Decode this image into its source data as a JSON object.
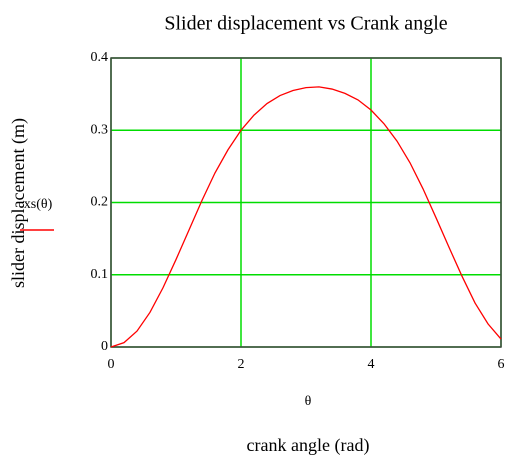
{
  "chart_data": {
    "type": "line",
    "title": "Slider displacement vs Crank angle",
    "x_label": "crank angle (rad)",
    "x_variable": "θ",
    "y_label": "slider displacement (m)",
    "x": [
      0,
      0.2,
      0.4,
      0.6,
      0.8,
      1.0,
      1.2,
      1.4,
      1.6,
      1.8,
      2.0,
      2.2,
      2.4,
      2.6,
      2.8,
      3.0,
      3.2,
      3.4,
      3.6,
      3.8,
      4.0,
      4.2,
      4.4,
      4.6,
      4.8,
      5.0,
      5.2,
      5.4,
      5.6,
      5.8,
      6.0
    ],
    "series": [
      {
        "name": "xs(θ)",
        "color": "#ff0000",
        "values": [
          0,
          0.006,
          0.022,
          0.048,
          0.082,
          0.121,
          0.162,
          0.203,
          0.241,
          0.273,
          0.3,
          0.321,
          0.337,
          0.348,
          0.355,
          0.359,
          0.36,
          0.357,
          0.351,
          0.342,
          0.328,
          0.309,
          0.285,
          0.255,
          0.219,
          0.179,
          0.138,
          0.098,
          0.061,
          0.032,
          0.011
        ]
      }
    ],
    "xlim": [
      0,
      6
    ],
    "xticks": [
      0,
      2,
      4,
      6
    ],
    "ylim": [
      0,
      0.4
    ],
    "yticks": [
      0,
      0.1,
      0.2,
      0.3,
      0.4
    ],
    "grid": true,
    "grid_color": "#00dd00"
  }
}
